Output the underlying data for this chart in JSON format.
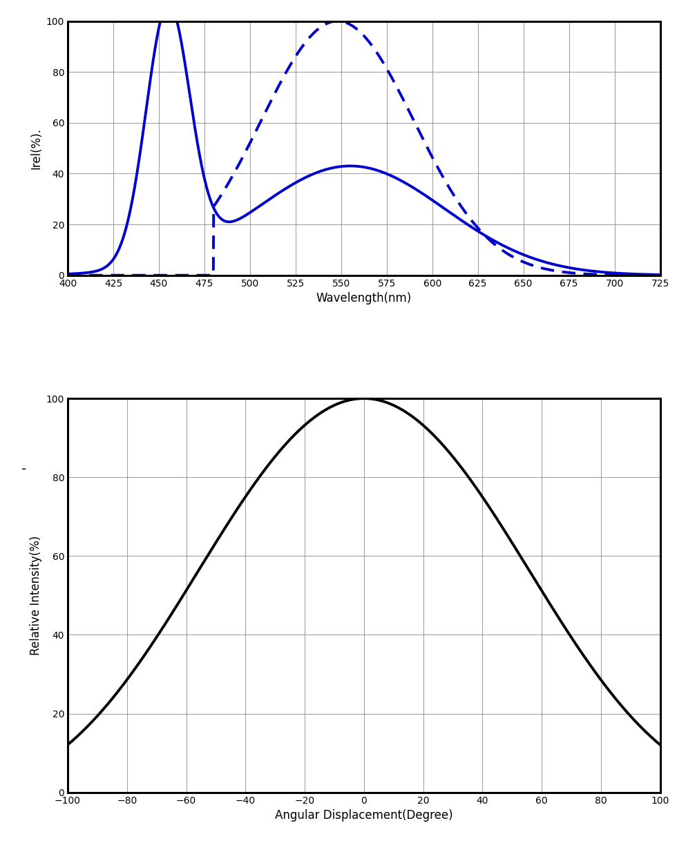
{
  "top_chart": {
    "xlabel": "Wavelength(nm)",
    "ylabel": "Irel(%).",
    "xlim": [
      400,
      725
    ],
    "ylim": [
      0,
      100
    ],
    "xticks": [
      400,
      425,
      450,
      475,
      500,
      525,
      550,
      575,
      600,
      625,
      650,
      675,
      700,
      725
    ],
    "yticks": [
      0,
      20,
      40,
      60,
      80,
      100
    ],
    "color": "#0000CC",
    "line_width": 2.8
  },
  "bottom_chart": {
    "xlabel": "Angular Displacement(Degree)",
    "ylabel": "Relative Intensity(%)",
    "xlim": [
      -100,
      100
    ],
    "ylim": [
      0,
      100
    ],
    "xticks": [
      -100,
      -80,
      -60,
      -40,
      -20,
      0,
      20,
      40,
      60,
      80,
      100
    ],
    "yticks": [
      0,
      20,
      40,
      60,
      80,
      100
    ],
    "color": "#000000",
    "line_width": 2.8
  },
  "solid_params": {
    "peak1_mu": 455,
    "peak1_sigma": 12,
    "peak1_amp": 100,
    "peak2_mu": 555,
    "peak2_sigma": 52,
    "peak2_amp": 43
  },
  "dashed_params": {
    "peak_mu": 548,
    "peak_sigma": 42,
    "peak_amp": 100,
    "x_start": 480
  },
  "angular_params": {
    "exponent": 3.8,
    "scale": 0.55
  }
}
